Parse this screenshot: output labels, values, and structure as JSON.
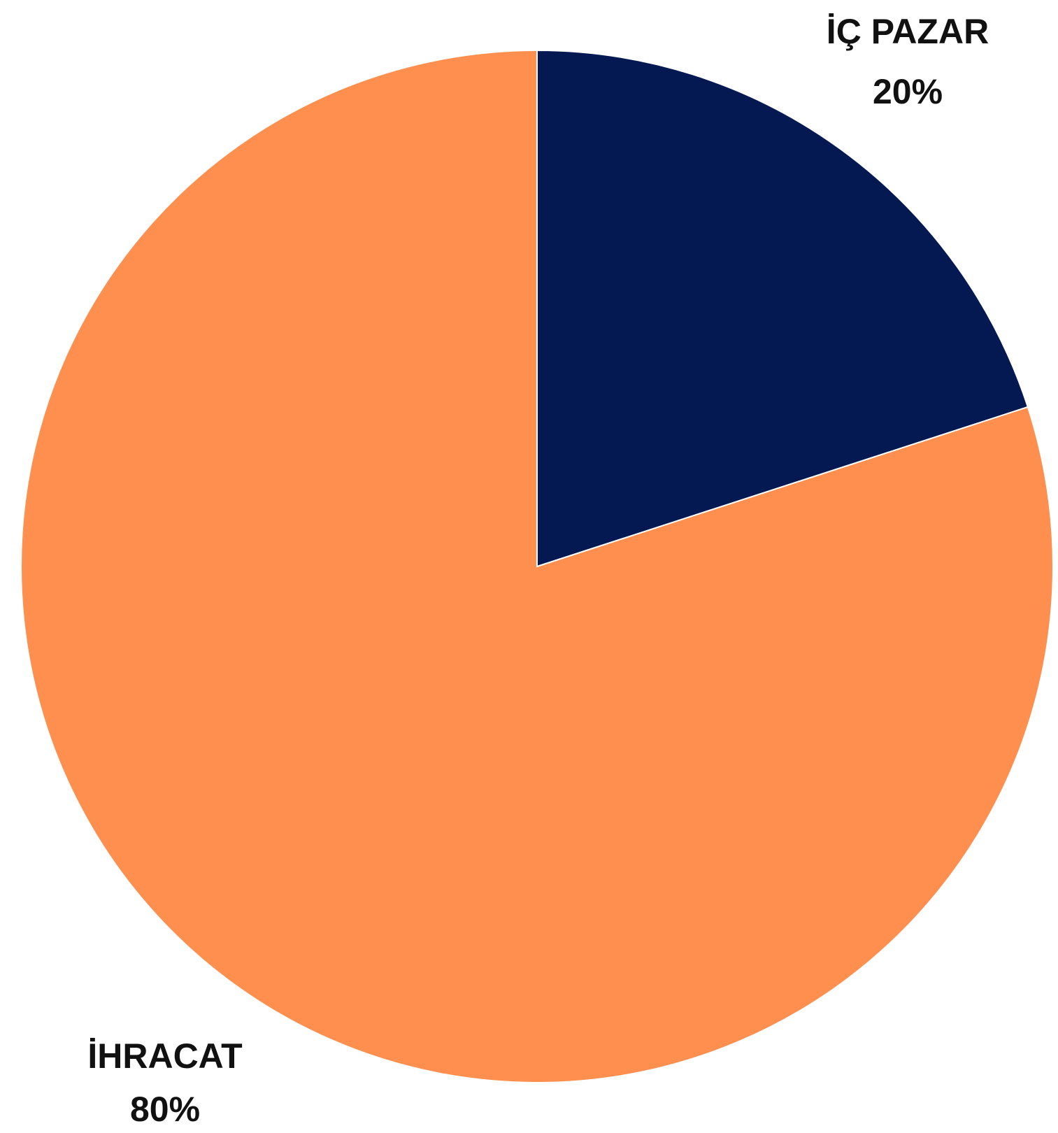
{
  "chart_data": {
    "type": "pie",
    "title": "",
    "start_angle_deg": 0,
    "direction": "clockwise",
    "slices": [
      {
        "label": "İÇ PAZAR",
        "value": 20,
        "display": "20%",
        "color": "#041852"
      },
      {
        "label": "İHRACAT",
        "value": 80,
        "display": "80%",
        "color": "#FF8F4F"
      }
    ]
  }
}
